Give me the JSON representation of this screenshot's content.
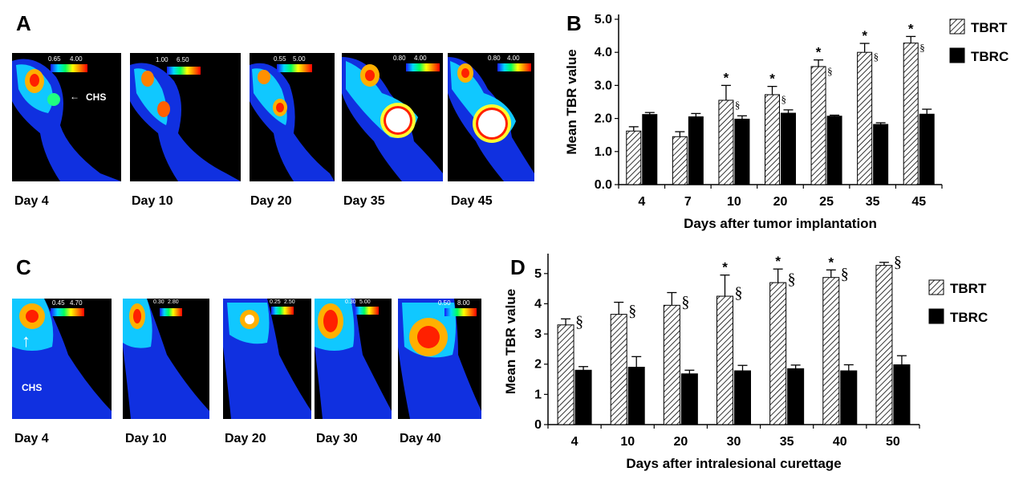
{
  "panels": {
    "A": {
      "letter": "A",
      "annotation": "CHS",
      "scans": [
        {
          "label": "Day 4",
          "scale_min": "0.65",
          "scale_max": "4.00"
        },
        {
          "label": "Day 10",
          "scale_min": "1.00",
          "scale_max": "6.50"
        },
        {
          "label": "Day 20",
          "scale_min": "0.55",
          "scale_max": "5.00"
        },
        {
          "label": "Day 35",
          "scale_min": "0.80",
          "scale_max": "4.00"
        },
        {
          "label": "Day 45",
          "scale_min": "0.80",
          "scale_max": "4.00"
        }
      ]
    },
    "C": {
      "letter": "C",
      "annotation": "CHS",
      "scans": [
        {
          "label": "Day 4",
          "scale_min": "0.45",
          "scale_max": "4.70"
        },
        {
          "label": "Day 10",
          "scale_min": "0.30",
          "scale_max": "2.80"
        },
        {
          "label": "Day 20",
          "scale_min": "0.25",
          "scale_max": "2.50"
        },
        {
          "label": "Day 30",
          "scale_min": "0.30",
          "scale_max": "5.00"
        },
        {
          "label": "Day 40",
          "scale_min": "0.50",
          "scale_max": "8.00"
        }
      ]
    },
    "B": {
      "letter": "B"
    },
    "D": {
      "letter": "D"
    }
  },
  "chart_data": [
    {
      "id": "B",
      "type": "bar",
      "xlabel": "Days after tumor implantation",
      "ylabel": "Mean TBR value",
      "categories": [
        "4",
        "7",
        "10",
        "20",
        "25",
        "35",
        "45"
      ],
      "ylim": [
        0,
        5
      ],
      "yticks": [
        "0.0",
        "1.0",
        "2.0",
        "3.0",
        "4.0",
        "5.0"
      ],
      "legend_position": "top-right",
      "series": [
        {
          "name": "TBRT",
          "pattern": "hatched",
          "values": [
            1.62,
            1.45,
            2.55,
            2.72,
            3.57,
            4.0,
            4.28
          ],
          "errors": [
            0.13,
            0.15,
            0.45,
            0.25,
            0.2,
            0.27,
            0.2
          ]
        },
        {
          "name": "TBRC",
          "pattern": "solid",
          "color": "#000000",
          "values": [
            2.12,
            2.05,
            1.98,
            2.16,
            2.07,
            1.82,
            2.13
          ],
          "errors": [
            0.06,
            0.1,
            0.1,
            0.1,
            0.03,
            0.05,
            0.15
          ]
        }
      ],
      "annotations": [
        {
          "category": "10",
          "star": "*",
          "section": "§"
        },
        {
          "category": "20",
          "star": "*",
          "section": "§"
        },
        {
          "category": "25",
          "star": "*",
          "section": "§"
        },
        {
          "category": "35",
          "star": "*",
          "section": "§"
        },
        {
          "category": "45",
          "star": "*",
          "section": "§"
        }
      ]
    },
    {
      "id": "D",
      "type": "bar",
      "xlabel": "Days after intralesional curettage",
      "ylabel": "Mean TBR value",
      "categories": [
        "4",
        "10",
        "20",
        "30",
        "35",
        "40",
        "50"
      ],
      "ylim": [
        0,
        5.5
      ],
      "yticks": [
        "0",
        "1",
        "2",
        "3",
        "4",
        "5"
      ],
      "legend_position": "top-right",
      "series": [
        {
          "name": "TBRT",
          "pattern": "hatched",
          "values": [
            3.3,
            3.65,
            3.95,
            4.25,
            4.7,
            4.87,
            5.27
          ],
          "errors": [
            0.2,
            0.4,
            0.42,
            0.7,
            0.45,
            0.25,
            0.1
          ]
        },
        {
          "name": "TBRC",
          "pattern": "solid",
          "color": "#000000",
          "values": [
            1.8,
            1.9,
            1.68,
            1.78,
            1.85,
            1.78,
            1.98
          ],
          "errors": [
            0.12,
            0.35,
            0.12,
            0.18,
            0.12,
            0.2,
            0.3
          ]
        }
      ],
      "annotations": [
        {
          "category": "4",
          "star": "",
          "section": "§"
        },
        {
          "category": "10",
          "star": "",
          "section": "§"
        },
        {
          "category": "20",
          "star": "",
          "section": "§"
        },
        {
          "category": "30",
          "star": "*",
          "section": "§"
        },
        {
          "category": "35",
          "star": "*",
          "section": "§"
        },
        {
          "category": "40",
          "star": "*",
          "section": "§"
        },
        {
          "category": "50",
          "star": "",
          "section": "§"
        }
      ]
    }
  ]
}
